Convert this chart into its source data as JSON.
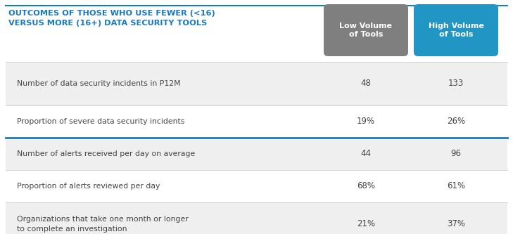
{
  "title_line1": "OUTCOMES OF THOSE WHO USE FEWER (<16)",
  "title_line2": "VERSUS MORE (16+) DATA SECURITY TOOLS",
  "title_color": "#1a7abf",
  "col1_header": "Low Volume\nof Tools",
  "col2_header": "High Volume\nof Tools",
  "col1_header_bg": "#7f7f7f",
  "col2_header_bg": "#2196c4",
  "header_text_color": "#ffffff",
  "rows": [
    {
      "label": "Number of data security incidents in P12M",
      "col1": "48",
      "col2": "133",
      "bg": "#efefef",
      "thick_border_top": false
    },
    {
      "label": "Proportion of severe data security incidents",
      "col1": "19%",
      "col2": "26%",
      "bg": "#ffffff",
      "thick_border_top": false
    },
    {
      "label": "Number of alerts received per day on average",
      "col1": "44",
      "col2": "96",
      "bg": "#efefef",
      "thick_border_top": true
    },
    {
      "label": "Proportion of alerts reviewed per day",
      "col1": "68%",
      "col2": "61%",
      "bg": "#ffffff",
      "thick_border_top": false
    },
    {
      "label": "Organizations that take one month or longer\nto complete an investigation",
      "col1": "21%",
      "col2": "37%",
      "bg": "#efefef",
      "thick_border_top": false
    }
  ],
  "top_border_color": "#1a7abf",
  "inner_border_color": "#cccccc",
  "thick_border_color": "#1a7abf",
  "text_color": "#444444",
  "background_color": "#ffffff",
  "fig_w": 7.29,
  "fig_h": 3.33,
  "dpi": 100
}
